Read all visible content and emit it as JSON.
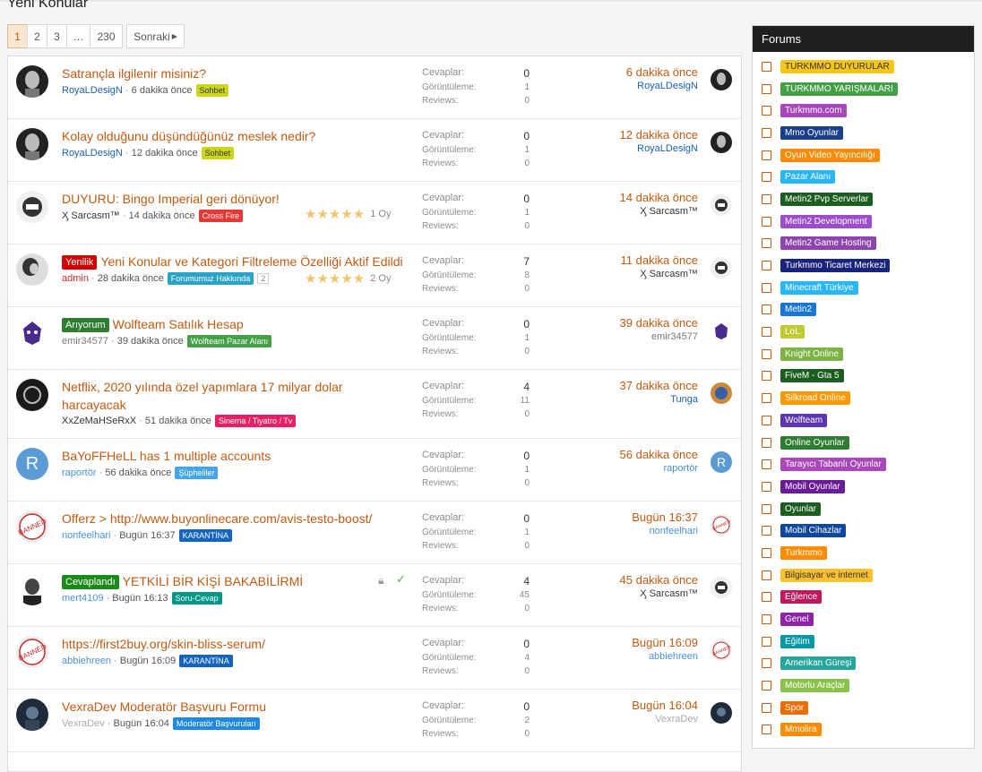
{
  "page": {
    "title": "Yeni Konular"
  },
  "pagination": {
    "pages": [
      "1",
      "2",
      "3",
      "…",
      "230"
    ],
    "next": "Sonraki"
  },
  "threads": [
    {
      "prefix": "",
      "prefix_color": "",
      "title": "Satrançla ilgilenir misiniz?",
      "title2": "",
      "user": "RoyaLDesigN",
      "user_color": "#1a5fb4",
      "when": "6 dakika önce",
      "tag": "Sohbet",
      "tag_color": "#c9d61a",
      "tag_text": "#333",
      "replies": "0",
      "views": "1",
      "reviews": "0",
      "last_time": "6 dakika önce",
      "last_user": "RoyaLDesigN",
      "last_user_color": "#1a5fb4",
      "rating": "",
      "avatar": "portrait"
    },
    {
      "prefix": "",
      "prefix_color": "",
      "title": "Kolay olduğunu düşündüğünüz meslek nedir?",
      "title2": "",
      "user": "RoyaLDesigN",
      "user_color": "#1a5fb4",
      "when": "12 dakika önce",
      "tag": "Sohbet",
      "tag_color": "#c9d61a",
      "tag_text": "#333",
      "replies": "0",
      "views": "1",
      "reviews": "0",
      "last_time": "12 dakika önce",
      "last_user": "RoyaLDesigN",
      "last_user_color": "#1a5fb4",
      "rating": "",
      "avatar": "portrait"
    },
    {
      "prefix": "",
      "prefix_color": "",
      "title": "DUYURU: Bingo Imperial geri dönüyor!",
      "title2": "",
      "user": "Ӽ Sarcasm™",
      "user_color": "#333",
      "when": "14 dakika önce",
      "tag": "Cross Fire",
      "tag_color": "#e53935",
      "tag_text": "#fff",
      "replies": "0",
      "views": "1",
      "reviews": "0",
      "last_time": "14 dakika önce",
      "last_user": "Ӽ Sarcasm™",
      "last_user_color": "#333",
      "rating": "1 Oy",
      "avatar": "logo"
    },
    {
      "prefix": "Yenilik",
      "prefix_color": "#d50000",
      "title": "Yeni Konular ve Kategori Filtreleme Özelliği Aktif Edildi",
      "title2": "",
      "user": "admin",
      "user_color": "#c62828",
      "when": "28 dakika önce",
      "tag": "Forumumuz Hakkında",
      "tag_color": "#29a3c7",
      "tag_text": "#fff",
      "extra": "2",
      "replies": "7",
      "views": "8",
      "reviews": "0",
      "last_time": "11 dakika önce",
      "last_user": "Ӽ Sarcasm™",
      "last_user_color": "#333",
      "rating": "2 Oy",
      "avatar": "woman"
    },
    {
      "prefix": "Arıyorum",
      "prefix_color": "#2e7d32",
      "title": "Wolfteam Satılık Hesap",
      "title2": "",
      "user": "emir34577",
      "user_color": "#777",
      "when": "39 dakika önce",
      "tag": "Wolfteam Pazar Alanı",
      "tag_color": "#43a047",
      "tag_text": "#fff",
      "replies": "0",
      "views": "1",
      "reviews": "0",
      "last_time": "39 dakika önce",
      "last_user": "emir34577",
      "last_user_color": "#777",
      "rating": "",
      "avatar": "wolf"
    },
    {
      "prefix": "",
      "prefix_color": "",
      "title": "Netflix, 2020 yılında özel yapımlara 17 milyar dolar",
      "title2": "harcayacak",
      "user": "XxZeMaHSeRxX",
      "user_color": "#333",
      "when": "51 dakika önce",
      "tag": "Sinema / Tiyatro / Tv",
      "tag_color": "#e91e63",
      "tag_text": "#fff",
      "replies": "4",
      "views": "11",
      "reviews": "0",
      "last_time": "37 dakika önce",
      "last_user": "Tunga",
      "last_user_color": "#1a5fb4",
      "rating": "",
      "avatar": "dark"
    },
    {
      "prefix": "",
      "prefix_color": "",
      "title": "BaYoFFHeLL has 1 multiple accounts",
      "title2": "",
      "user": "raportör",
      "user_color": "#4a90d9",
      "when": "56 dakika önce",
      "tag": "Şüpheliler",
      "tag_color": "#42a5f5",
      "tag_text": "#fff",
      "replies": "0",
      "views": "1",
      "reviews": "0",
      "last_time": "56 dakika önce",
      "last_user": "raportör",
      "last_user_color": "#4a90d9",
      "rating": "",
      "avatar": "R"
    },
    {
      "prefix": "",
      "prefix_color": "",
      "title": "Offerz > http://www.buyonlinecare.com/avis-testo-boost/",
      "title2": "",
      "user": "nonfeelhari",
      "user_color": "#4a90d9",
      "when": "Bugün 16:37",
      "tag": "KARANTİNA",
      "tag_color": "#1565c0",
      "tag_text": "#fff",
      "replies": "0",
      "views": "1",
      "reviews": "0",
      "last_time": "Bugün 16:37",
      "last_user": "nonfeelhari",
      "last_user_color": "#4a90d9",
      "rating": "",
      "avatar": "banned"
    },
    {
      "prefix": "Cevaplandı",
      "prefix_color": "#1b8a1b",
      "title": "YETKİLİ BİR KİŞİ BAKABİLİRMİ",
      "title2": "",
      "user": "mert4109",
      "user_color": "#4a90d9",
      "when": "Bugün 16:13",
      "tag": "Soru-Cevap",
      "tag_color": "#009688",
      "tag_text": "#fff",
      "replies": "4",
      "views": "45",
      "reviews": "0",
      "last_time": "45 dakika önce",
      "last_user": "Ӽ Sarcasm™",
      "last_user_color": "#333",
      "rating": "",
      "avatar": "man",
      "locked": true
    },
    {
      "prefix": "",
      "prefix_color": "",
      "title": "https://first2buy.org/skin-bliss-serum/",
      "title2": "",
      "user": "abbiehreen",
      "user_color": "#4a90d9",
      "when": "Bugün 16:09",
      "tag": "KARANTİNA",
      "tag_color": "#1565c0",
      "tag_text": "#fff",
      "replies": "0",
      "views": "4",
      "reviews": "0",
      "last_time": "Bugün 16:09",
      "last_user": "abbiehreen",
      "last_user_color": "#4a90d9",
      "rating": "",
      "avatar": "banned"
    },
    {
      "prefix": "",
      "prefix_color": "",
      "title": "VexraDev Moderatör Başvuru Formu",
      "title2": "",
      "user": "VexraDev",
      "user_color": "#aaa",
      "when": "Bugün 16:04",
      "tag": "Moderatör Başvuruları",
      "tag_color": "#1e88e5",
      "tag_text": "#fff",
      "replies": "0",
      "views": "2",
      "reviews": "0",
      "last_time": "Bugün 16:04",
      "last_user": "VexraDev",
      "last_user_color": "#aaa",
      "rating": "",
      "avatar": "night"
    }
  ],
  "labels": {
    "replies": "Cevaplar:",
    "views": "Görüntüleme:",
    "reviews": "Reviews:"
  },
  "sidebar": {
    "title": "Forums",
    "forums": [
      {
        "name": "TURKMMO DUYURULAR",
        "color": "#f5c518",
        "text": "#333"
      },
      {
        "name": "TURKMMO YARIŞMALARI",
        "color": "#43a047",
        "text": "#fff"
      },
      {
        "name": "Turkmmo.com",
        "color": "#ab47bc",
        "text": "#fff"
      },
      {
        "name": "Mmo Oyunlar",
        "color": "#1a3f8c",
        "text": "#fff"
      },
      {
        "name": "Oyun Video Yayıncılığı",
        "color": "#fb8c00",
        "text": "#fff"
      },
      {
        "name": "Pazar Alanı",
        "color": "#29b6f6",
        "text": "#fff"
      },
      {
        "name": "Metin2 Pvp Serverlar",
        "color": "#1b5e20",
        "text": "#fff"
      },
      {
        "name": "Metin2 Development",
        "color": "#9c4dcc",
        "text": "#fff"
      },
      {
        "name": "Metin2 Game Hosting",
        "color": "#8e44ad",
        "text": "#fff"
      },
      {
        "name": "Turkmmo Ticaret Merkezi",
        "color": "#1a237e",
        "text": "#fff"
      },
      {
        "name": "Minecraft Türkiye",
        "color": "#29b6f6",
        "text": "#fff"
      },
      {
        "name": "Metin2",
        "color": "#1976d2",
        "text": "#fff"
      },
      {
        "name": "LoL",
        "color": "#c0ca33",
        "text": "#fff"
      },
      {
        "name": "Knight Online",
        "color": "#7cb342",
        "text": "#fff"
      },
      {
        "name": "FiveM - Gta 5",
        "color": "#1b5e20",
        "text": "#fff"
      },
      {
        "name": "Silkroad Online",
        "color": "#ff9800",
        "text": "#fff"
      },
      {
        "name": "Wolfteam",
        "color": "#5e35b1",
        "text": "#fff"
      },
      {
        "name": "Online Oyunlar",
        "color": "#2e7d32",
        "text": "#fff"
      },
      {
        "name": "Tarayıcı Tabanlı Oyunlar",
        "color": "#ab47bc",
        "text": "#fff"
      },
      {
        "name": "Mobil Oyunlar",
        "color": "#6a1b9a",
        "text": "#fff"
      },
      {
        "name": "Oyunlar",
        "color": "#1b5e20",
        "text": "#fff"
      },
      {
        "name": "Mobil Cihazlar",
        "color": "#0d47a1",
        "text": "#fff"
      },
      {
        "name": "Turkmmo",
        "color": "#fb8c00",
        "text": "#fff"
      },
      {
        "name": "Bilgisayar ve internet",
        "color": "#fbc02d",
        "text": "#333"
      },
      {
        "name": "Eğlence",
        "color": "#c2185b",
        "text": "#fff"
      },
      {
        "name": "Genel",
        "color": "#8e24aa",
        "text": "#fff"
      },
      {
        "name": "Eğitim",
        "color": "#0097a7",
        "text": "#fff"
      },
      {
        "name": "Amerikan Güreşi",
        "color": "#26a69a",
        "text": "#fff"
      },
      {
        "name": "Motorlu Araçlar",
        "color": "#8bc34a",
        "text": "#fff"
      },
      {
        "name": "Spor",
        "color": "#ef6c00",
        "text": "#fff"
      },
      {
        "name": "Mmolira",
        "color": "#fb8c00",
        "text": "#fff"
      }
    ]
  }
}
